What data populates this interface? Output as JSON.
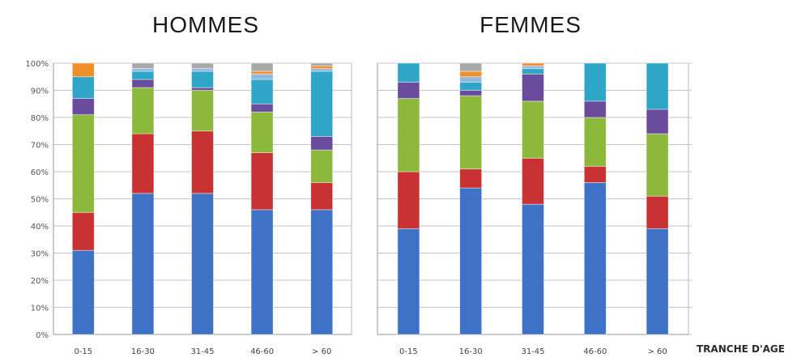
{
  "chart_data": [
    {
      "type": "bar",
      "stacked": true,
      "title": "HOMMES",
      "xlabel": "",
      "ylabel": "",
      "ylim": [
        0,
        100
      ],
      "yticks": [
        "0%",
        "10%",
        "20%",
        "30%",
        "40%",
        "50%",
        "60%",
        "70%",
        "80%",
        "90%",
        "100%"
      ],
      "categories": [
        "0-15",
        "16-30",
        "31-45",
        "46-60",
        "> 60"
      ],
      "grid": true,
      "legend": "none",
      "series": [
        {
          "color": "#3d72c6",
          "values": [
            31,
            52,
            52,
            46,
            46
          ]
        },
        {
          "color": "#c83232",
          "values": [
            14,
            22,
            23,
            21,
            10
          ]
        },
        {
          "color": "#8cb83c",
          "values": [
            36,
            17,
            15,
            15,
            12
          ]
        },
        {
          "color": "#6a4c9c",
          "values": [
            6,
            3,
            1,
            3,
            5
          ]
        },
        {
          "color": "#2fa6c8",
          "values": [
            8,
            3,
            6,
            9,
            24
          ]
        },
        {
          "color": "#93b7e3",
          "values": [
            0,
            1,
            1,
            2,
            1
          ]
        },
        {
          "color": "#f0902a",
          "values": [
            5,
            0,
            0,
            1,
            1
          ]
        },
        {
          "color": "#a9a9a9",
          "values": [
            0,
            2,
            2,
            3,
            1
          ]
        }
      ]
    },
    {
      "type": "bar",
      "stacked": true,
      "title": "FEMMES",
      "xlabel": "TRANCHE D'AGE",
      "ylabel": "",
      "ylim": [
        0,
        100
      ],
      "categories": [
        "0-15",
        "16-30",
        "31-45",
        "46-60",
        "> 60"
      ],
      "grid": true,
      "legend": "none",
      "series": [
        {
          "color": "#3d72c6",
          "values": [
            39,
            54,
            48,
            56,
            39
          ]
        },
        {
          "color": "#c83232",
          "values": [
            21,
            7,
            17,
            6,
            12
          ]
        },
        {
          "color": "#8cb83c",
          "values": [
            27,
            27,
            21,
            18,
            23
          ]
        },
        {
          "color": "#6a4c9c",
          "values": [
            6,
            2,
            10,
            6,
            9
          ]
        },
        {
          "color": "#2fa6c8",
          "values": [
            7,
            3,
            2,
            14,
            17
          ]
        },
        {
          "color": "#93b7e3",
          "values": [
            0,
            2,
            1,
            0,
            0
          ]
        },
        {
          "color": "#f0902a",
          "values": [
            0,
            2,
            1,
            0,
            0
          ]
        },
        {
          "color": "#a9a9a9",
          "values": [
            0,
            3,
            0,
            0,
            0
          ]
        }
      ]
    }
  ]
}
